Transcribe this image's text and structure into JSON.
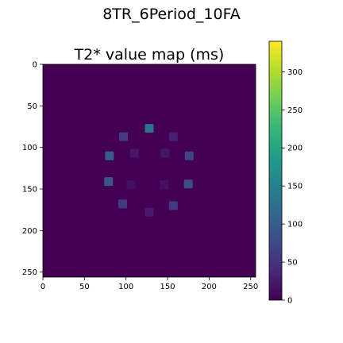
{
  "figure": {
    "suptitle": "8TR_6Period_10FA"
  },
  "colors": {
    "background_map": "#440154",
    "marker_high": "#2a788e",
    "marker_mid": "#3b528b",
    "marker_low": "#482576",
    "colormap": [
      "#440154",
      "#482878",
      "#3e4989",
      "#31688e",
      "#26828e",
      "#1f9e89",
      "#35b779",
      "#6ece58",
      "#b5de2b",
      "#fde725"
    ]
  },
  "chart_data": {
    "type": "heatmap",
    "title": "T2* value map (ms)",
    "xlabel": "",
    "ylabel": "",
    "xlim": [
      0,
      256
    ],
    "ylim": [
      256,
      0
    ],
    "xticks": [
      "0",
      "50",
      "100",
      "150",
      "200",
      "250"
    ],
    "yticks": [
      "0",
      "50",
      "100",
      "150",
      "200",
      "250"
    ],
    "colorbar": {
      "range": [
        0,
        340
      ],
      "ticks": [
        "0",
        "50",
        "100",
        "150",
        "200",
        "250",
        "300"
      ],
      "colormap": "viridis"
    },
    "background_value": 0,
    "regions": [
      {
        "x": 128,
        "y": 77,
        "value": 130
      },
      {
        "x": 97,
        "y": 87,
        "value": 60
      },
      {
        "x": 157,
        "y": 87,
        "value": 30
      },
      {
        "x": 80,
        "y": 110,
        "value": 100
      },
      {
        "x": 110,
        "y": 107,
        "value": 20
      },
      {
        "x": 147,
        "y": 107,
        "value": 20
      },
      {
        "x": 176,
        "y": 110,
        "value": 70
      },
      {
        "x": 79,
        "y": 141,
        "value": 90
      },
      {
        "x": 106,
        "y": 145,
        "value": 15
      },
      {
        "x": 146,
        "y": 145,
        "value": 15
      },
      {
        "x": 175,
        "y": 144,
        "value": 80
      },
      {
        "x": 96,
        "y": 168,
        "value": 60
      },
      {
        "x": 128,
        "y": 178,
        "value": 25
      },
      {
        "x": 157,
        "y": 170,
        "value": 60
      }
    ]
  }
}
